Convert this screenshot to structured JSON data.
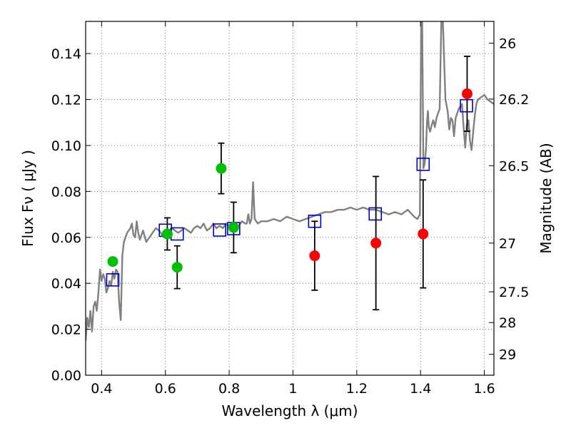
{
  "chart_data": {
    "type": "scatter",
    "xlabel": "Wavelength  λ (μm)",
    "ylabel": "Flux  Fν  ( μJy )",
    "y2label": "Magnitude (AB)",
    "xlim": [
      0.35,
      1.63
    ],
    "ylim": [
      0.0,
      0.154
    ],
    "grid": true,
    "x_ticks": [
      0.4,
      0.6,
      0.8,
      1.0,
      1.2,
      1.4,
      1.6
    ],
    "x_tick_labels": [
      "0.4",
      "0.6",
      "0.8",
      "1",
      "1.2",
      "1.4",
      "1.6"
    ],
    "y_ticks": [
      0.0,
      0.02,
      0.04,
      0.06,
      0.08,
      0.1,
      0.12,
      0.14
    ],
    "y_tick_labels": [
      "0.00",
      "0.02",
      "0.04",
      "0.06",
      "0.08",
      "0.10",
      "0.12",
      "0.14"
    ],
    "y2_ticks": [
      {
        "label": "26",
        "flux": 0.1445
      },
      {
        "label": "26.2",
        "flux": 0.1202
      },
      {
        "label": "26.5",
        "flux": 0.0912
      },
      {
        "label": "27",
        "flux": 0.0575
      },
      {
        "label": "27.5",
        "flux": 0.0363
      },
      {
        "label": "28",
        "flux": 0.0229
      },
      {
        "label": "29",
        "flux": 0.0091
      }
    ],
    "colors": {
      "model": "#808080",
      "green": "#00c000",
      "red": "#ff0000",
      "square": "#0000cc",
      "errorbar": "#000000",
      "grid": "#555555"
    },
    "series": [
      {
        "marker": "circle-green",
        "points": [
          {
            "x": 0.435,
            "y": 0.0495
          },
          {
            "x": 0.606,
            "y": 0.0615,
            "err": 0.007
          },
          {
            "x": 0.637,
            "y": 0.047,
            "err": 0.0093
          },
          {
            "x": 0.775,
            "y": 0.09,
            "err": 0.011
          },
          {
            "x": 0.814,
            "y": 0.0643,
            "err": 0.011
          }
        ]
      },
      {
        "marker": "circle-red",
        "points": [
          {
            "x": 1.068,
            "y": 0.052,
            "err": 0.015
          },
          {
            "x": 1.26,
            "y": 0.0575,
            "err": 0.029
          },
          {
            "x": 1.408,
            "y": 0.0615,
            "err": 0.0235
          },
          {
            "x": 1.546,
            "y": 0.1225,
            "err": 0.0163
          }
        ]
      },
      {
        "marker": "square-open-blue",
        "points": [
          {
            "x": 0.435,
            "y": 0.0415
          },
          {
            "x": 0.6,
            "y": 0.0631
          },
          {
            "x": 0.637,
            "y": 0.0615
          },
          {
            "x": 0.77,
            "y": 0.0632
          },
          {
            "x": 0.814,
            "y": 0.0638
          },
          {
            "x": 1.068,
            "y": 0.067
          },
          {
            "x": 1.258,
            "y": 0.0702
          },
          {
            "x": 1.408,
            "y": 0.0918
          },
          {
            "x": 1.544,
            "y": 0.1173
          }
        ]
      },
      {
        "marker": "line-model",
        "points": [
          [
            0.35,
            0.015
          ],
          [
            0.355,
            0.025
          ],
          [
            0.36,
            0.021
          ],
          [
            0.365,
            0.028
          ],
          [
            0.37,
            0.019
          ],
          [
            0.375,
            0.03
          ],
          [
            0.38,
            0.032
          ],
          [
            0.385,
            0.028
          ],
          [
            0.39,
            0.036
          ],
          [
            0.395,
            0.046
          ],
          [
            0.4,
            0.041
          ],
          [
            0.405,
            0.044
          ],
          [
            0.41,
            0.042
          ],
          [
            0.415,
            0.036
          ],
          [
            0.42,
            0.038
          ],
          [
            0.425,
            0.041
          ],
          [
            0.43,
            0.039
          ],
          [
            0.435,
            0.045
          ],
          [
            0.44,
            0.042
          ],
          [
            0.445,
            0.046
          ],
          [
            0.45,
            0.045
          ],
          [
            0.455,
            0.032
          ],
          [
            0.46,
            0.024
          ],
          [
            0.465,
            0.052
          ],
          [
            0.47,
            0.058
          ],
          [
            0.48,
            0.062
          ],
          [
            0.49,
            0.064
          ],
          [
            0.495,
            0.066
          ],
          [
            0.5,
            0.061
          ],
          [
            0.505,
            0.06
          ],
          [
            0.51,
            0.067
          ],
          [
            0.515,
            0.062
          ],
          [
            0.52,
            0.059
          ],
          [
            0.53,
            0.063
          ],
          [
            0.54,
            0.058
          ],
          [
            0.55,
            0.06
          ],
          [
            0.56,
            0.062
          ],
          [
            0.57,
            0.064
          ],
          [
            0.58,
            0.063
          ],
          [
            0.59,
            0.061
          ],
          [
            0.6,
            0.062
          ],
          [
            0.61,
            0.063
          ],
          [
            0.62,
            0.064
          ],
          [
            0.63,
            0.063
          ],
          [
            0.64,
            0.062
          ],
          [
            0.65,
            0.063
          ],
          [
            0.66,
            0.064
          ],
          [
            0.67,
            0.063
          ],
          [
            0.68,
            0.062
          ],
          [
            0.69,
            0.064
          ],
          [
            0.7,
            0.065
          ],
          [
            0.71,
            0.064
          ],
          [
            0.72,
            0.066
          ],
          [
            0.73,
            0.063
          ],
          [
            0.74,
            0.064
          ],
          [
            0.75,
            0.066
          ],
          [
            0.76,
            0.064
          ],
          [
            0.77,
            0.065
          ],
          [
            0.78,
            0.064
          ],
          [
            0.79,
            0.066
          ],
          [
            0.8,
            0.065
          ],
          [
            0.81,
            0.064
          ],
          [
            0.82,
            0.066
          ],
          [
            0.83,
            0.065
          ],
          [
            0.84,
            0.067
          ],
          [
            0.85,
            0.066
          ],
          [
            0.855,
            0.066
          ],
          [
            0.86,
            0.07
          ],
          [
            0.865,
            0.066
          ],
          [
            0.87,
            0.068
          ],
          [
            0.875,
            0.084
          ],
          [
            0.88,
            0.068
          ],
          [
            0.89,
            0.066
          ],
          [
            0.9,
            0.067
          ],
          [
            0.92,
            0.067
          ],
          [
            0.94,
            0.068
          ],
          [
            0.96,
            0.067
          ],
          [
            0.98,
            0.069
          ],
          [
            1.0,
            0.068
          ],
          [
            1.02,
            0.067
          ],
          [
            1.04,
            0.068
          ],
          [
            1.06,
            0.069
          ],
          [
            1.08,
            0.07
          ],
          [
            1.1,
            0.071
          ],
          [
            1.12,
            0.071
          ],
          [
            1.14,
            0.072
          ],
          [
            1.16,
            0.072
          ],
          [
            1.18,
            0.073
          ],
          [
            1.2,
            0.072
          ],
          [
            1.22,
            0.073
          ],
          [
            1.24,
            0.072
          ],
          [
            1.26,
            0.072
          ],
          [
            1.28,
            0.071
          ],
          [
            1.3,
            0.07
          ],
          [
            1.32,
            0.071
          ],
          [
            1.34,
            0.07
          ],
          [
            1.36,
            0.072
          ],
          [
            1.38,
            0.069
          ],
          [
            1.39,
            0.068
          ],
          [
            1.398,
            0.07
          ],
          [
            1.402,
            0.154
          ],
          [
            1.405,
            0.154
          ],
          [
            1.409,
            0.09
          ],
          [
            1.413,
            0.092
          ],
          [
            1.417,
            0.098
          ],
          [
            1.42,
            0.11
          ],
          [
            1.423,
            0.115
          ],
          [
            1.426,
            0.108
          ],
          [
            1.43,
            0.106
          ],
          [
            1.435,
            0.109
          ],
          [
            1.44,
            0.111
          ],
          [
            1.445,
            0.108
          ],
          [
            1.45,
            0.112
          ],
          [
            1.455,
            0.114
          ],
          [
            1.46,
            0.116
          ],
          [
            1.465,
            0.154
          ],
          [
            1.47,
            0.154
          ],
          [
            1.478,
            0.12
          ],
          [
            1.485,
            0.115
          ],
          [
            1.49,
            0.107
          ],
          [
            1.495,
            0.112
          ],
          [
            1.5,
            0.111
          ],
          [
            1.505,
            0.104
          ],
          [
            1.51,
            0.112
          ],
          [
            1.515,
            0.114
          ],
          [
            1.52,
            0.116
          ],
          [
            1.53,
            0.118
          ],
          [
            1.535,
            0.108
          ],
          [
            1.54,
            0.099
          ],
          [
            1.545,
            0.109
          ],
          [
            1.55,
            0.111
          ],
          [
            1.555,
            0.102
          ],
          [
            1.56,
            0.098
          ],
          [
            1.565,
            0.106
          ],
          [
            1.57,
            0.113
          ],
          [
            1.575,
            0.118
          ],
          [
            1.58,
            0.12
          ],
          [
            1.59,
            0.121
          ],
          [
            1.6,
            0.122
          ],
          [
            1.61,
            0.12
          ],
          [
            1.62,
            0.119
          ],
          [
            1.63,
            0.118
          ]
        ]
      }
    ]
  }
}
